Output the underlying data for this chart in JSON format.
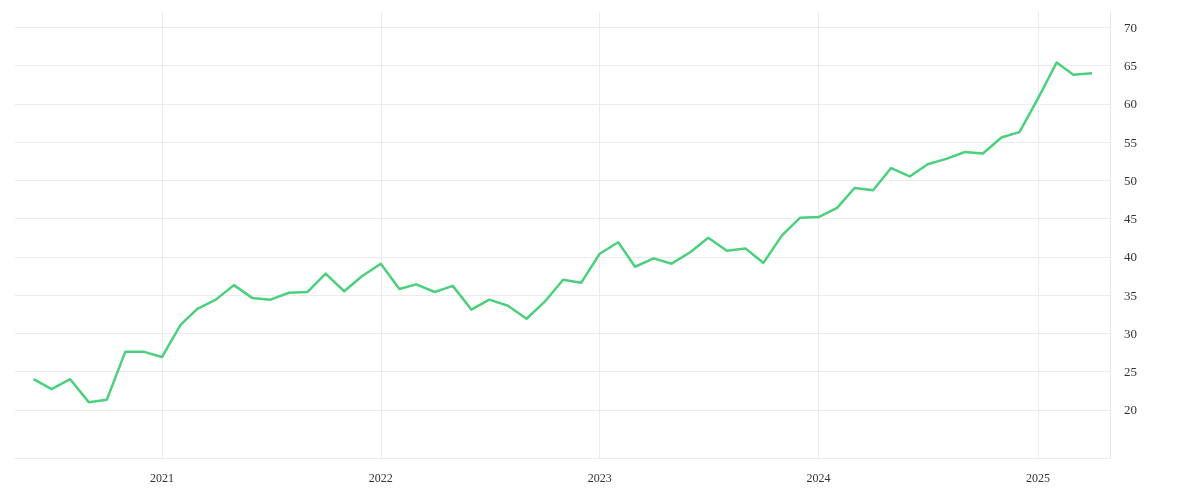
{
  "chart_data": {
    "type": "line",
    "x": [
      "2020-06",
      "2020-07",
      "2020-08",
      "2020-09",
      "2020-10",
      "2020-11",
      "2020-12",
      "2021-01",
      "2021-02",
      "2021-03",
      "2021-04",
      "2021-05",
      "2021-06",
      "2021-07",
      "2021-08",
      "2021-09",
      "2021-10",
      "2021-11",
      "2021-12",
      "2022-01",
      "2022-02",
      "2022-03",
      "2022-04",
      "2022-05",
      "2022-06",
      "2022-07",
      "2022-08",
      "2022-09",
      "2022-10",
      "2022-11",
      "2022-12",
      "2023-01",
      "2023-02",
      "2023-03",
      "2023-04",
      "2023-05",
      "2023-06",
      "2023-07",
      "2023-08",
      "2023-09",
      "2023-10",
      "2023-11",
      "2023-12",
      "2024-01",
      "2024-02",
      "2024-03",
      "2024-04",
      "2024-05",
      "2024-06",
      "2024-07",
      "2024-08",
      "2024-09",
      "2024-10",
      "2024-11",
      "2024-12",
      "2025-01",
      "2025-02",
      "2025-03",
      "2025-04"
    ],
    "series": [
      {
        "color": "#4cd07d",
        "values": [
          24.0,
          22.7,
          24.0,
          21.0,
          21.3,
          27.6,
          27.6,
          26.9,
          31.1,
          33.2,
          34.4,
          36.3,
          34.6,
          34.4,
          35.3,
          35.4,
          37.8,
          35.5,
          37.5,
          39.1,
          35.8,
          36.4,
          35.4,
          36.2,
          33.1,
          34.4,
          33.6,
          31.9,
          34.1,
          37.0,
          36.6,
          40.4,
          41.9,
          38.7,
          39.8,
          39.1,
          40.6,
          42.5,
          40.8,
          41.1,
          39.2,
          42.8,
          45.1,
          45.2,
          46.4,
          49.0,
          48.7,
          51.6,
          50.5,
          52.1,
          52.8,
          53.7,
          53.5,
          55.6,
          56.3,
          60.7,
          65.4,
          63.8,
          64.0
        ]
      }
    ],
    "xlim": [
      "2020-05",
      "2025-05"
    ],
    "xticks": [
      "2021",
      "2022",
      "2023",
      "2024",
      "2025"
    ],
    "ylim": [
      13.7,
      72
    ],
    "yticks": [
      20,
      25,
      30,
      35,
      40,
      45,
      50,
      55,
      60,
      65,
      70
    ],
    "grid": true,
    "marker": "none",
    "line_style": "solid"
  }
}
